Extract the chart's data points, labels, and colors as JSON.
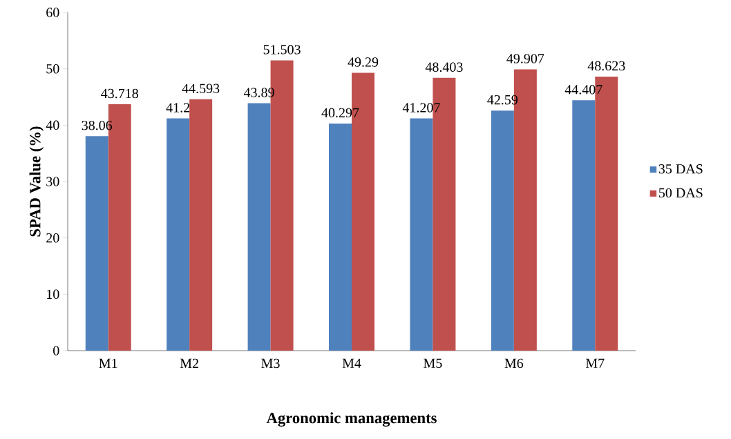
{
  "chart_data": {
    "type": "bar",
    "categories": [
      "M1",
      "M2",
      "M3",
      "M4",
      "M5",
      "M6",
      "M7"
    ],
    "series": [
      {
        "name": "35 DAS",
        "color": "#4f81bd",
        "values": [
          38.06,
          41.2,
          43.89,
          40.297,
          41.207,
          42.59,
          44.407
        ]
      },
      {
        "name": "50 DAS",
        "color": "#c0504d",
        "values": [
          43.718,
          44.593,
          51.503,
          49.29,
          48.403,
          49.907,
          48.623
        ]
      }
    ],
    "xlabel": "Agronomic  managements",
    "ylabel": "SPAD Value (%)",
    "ylim": [
      0,
      60
    ],
    "yticks": [
      0,
      10,
      20,
      30,
      40,
      50,
      60
    ],
    "data_labels": true,
    "legend": "right"
  }
}
